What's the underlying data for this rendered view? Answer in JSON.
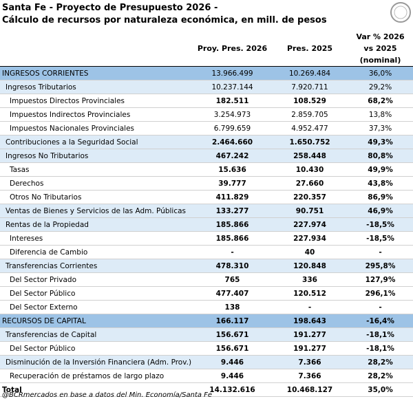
{
  "header": {
    "title": "Santa Fe - Proyecto de Presupuesto 2026 -",
    "subtitle": "Cálculo de recursos por naturaleza económica, en mill. de pesos"
  },
  "table": {
    "columns": [
      "Proy. Pres. 2026",
      "Pres. 2025",
      "Var % 2026 vs 2025 (nominal)"
    ],
    "rows": [
      [
        "INGRESOS CORRIENTES",
        "13.966.499",
        "10.269.484",
        "36,0%"
      ],
      [
        "Ingresos Tributarios",
        "10.237.144",
        "7.920.711",
        "29,2%"
      ],
      [
        "Impuestos Directos Provinciales",
        "182.511",
        "108.529",
        "68,2%"
      ],
      [
        "Impuestos Indirectos Provinciales",
        "3.254.973",
        "2.859.705",
        "13,8%"
      ],
      [
        "Impuestos Nacionales Provinciales",
        "6.799.659",
        "4.952.477",
        "37,3%"
      ],
      [
        "Contribuciones a la Seguridad Social",
        "2.464.660",
        "1.650.752",
        "49,3%"
      ],
      [
        "Ingresos No Tributarios",
        "467.242",
        "258.448",
        "80,8%"
      ],
      [
        "Tasas",
        "15.636",
        "10.430",
        "49,9%"
      ],
      [
        "Derechos",
        "39.777",
        "27.660",
        "43,8%"
      ],
      [
        "Otros No Tributarios",
        "411.829",
        "220.357",
        "86,9%"
      ],
      [
        "Ventas de Bienes y Servicios de las Adm. Públicas",
        "133.277",
        "90.751",
        "46,9%"
      ],
      [
        "Rentas de la Propiedad",
        "185.866",
        "227.974",
        "-18,5%"
      ],
      [
        "Intereses",
        "185.866",
        "227.934",
        "-18,5%"
      ],
      [
        "Diferencia de Cambio",
        "-",
        "40",
        "-"
      ],
      [
        "Transferencias Corrientes",
        "478.310",
        "120.848",
        "295,8%"
      ],
      [
        "Del Sector Privado",
        "765",
        "336",
        "127,9%"
      ],
      [
        "Del Sector Público",
        "477.407",
        "120.512",
        "296,1%"
      ],
      [
        "Del Sector Externo",
        "138",
        "-",
        "-"
      ],
      [
        "RECURSOS DE CAPITAL",
        "166.117",
        "198.643",
        "-16,4%"
      ],
      [
        "Transferencias de Capital",
        "156.671",
        "191.277",
        "-18,1%"
      ],
      [
        "Del Sector Público",
        "156.671",
        "191.277",
        "-18,1%"
      ],
      [
        "Disminución de la Inversión Financiera (Adm. Prov.)",
        "9.446",
        "7.366",
        "28,2%"
      ],
      [
        "Recuperación de préstamos de largo plazo",
        "9.446",
        "7.366",
        "28,2%"
      ],
      [
        "Total",
        "14.132.616",
        "10.468.127",
        "35,0%"
      ]
    ]
  },
  "footer": {
    "source": "@BCRmercados en base a datos del Min. Economía/Santa Fe"
  }
}
